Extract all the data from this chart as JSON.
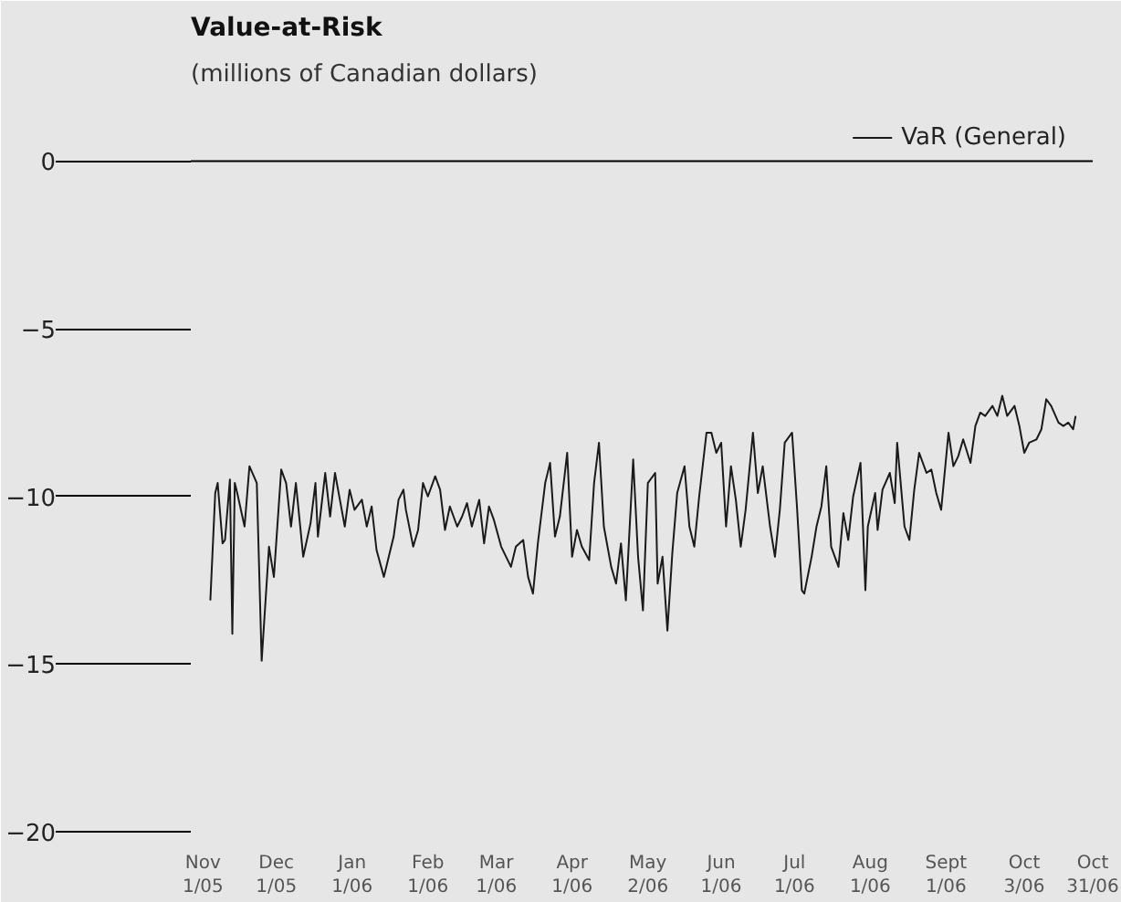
{
  "chart_data": {
    "type": "line",
    "title": "Value-at-Risk",
    "subtitle": "(millions of Canadian dollars)",
    "xlim": [
      "2005-10-27",
      "2006-10-31"
    ],
    "xticks": [
      {
        "value": "2005-11-01",
        "label": "Nov\n1/05"
      },
      {
        "value": "2005-12-01",
        "label": "Dec\n1/05"
      },
      {
        "value": "2006-01-01",
        "label": "Jan\n1/06"
      },
      {
        "value": "2006-02-01",
        "label": "Feb\n1/06"
      },
      {
        "value": "2006-03-01",
        "label": "Mar\n1/06"
      },
      {
        "value": "2006-04-01",
        "label": "Apr\n1/06"
      },
      {
        "value": "2006-05-02",
        "label": "May\n2/06"
      },
      {
        "value": "2006-06-01",
        "label": "Jun\n1/06"
      },
      {
        "value": "2006-07-01",
        "label": "Jul\n1/06"
      },
      {
        "value": "2006-08-01",
        "label": "Aug\n1/06"
      },
      {
        "value": "2006-09-01",
        "label": "Sept\n1/06"
      },
      {
        "value": "2006-10-03",
        "label": "Oct\n3/06"
      },
      {
        "value": "2006-10-31",
        "label": "Oct\n31/06"
      }
    ],
    "ylim": [
      -20,
      2
    ],
    "yticks": [
      0,
      -5,
      -10,
      -15,
      -20
    ],
    "ref_lines": [
      {
        "axis": "y",
        "value": 0,
        "color": "#000000"
      }
    ],
    "legend": "top right",
    "marker": "none",
    "line_style": "solid",
    "x": [
      "2005-11-04",
      "2005-11-06",
      "2005-11-07",
      "2005-11-09",
      "2005-11-10",
      "2005-11-12",
      "2005-11-13",
      "2005-11-14",
      "2005-11-15",
      "2005-11-18",
      "2005-11-20",
      "2005-11-23",
      "2005-11-25",
      "2005-11-28",
      "2005-11-30",
      "2005-12-03",
      "2005-12-05",
      "2005-12-07",
      "2005-12-09",
      "2005-12-12",
      "2005-12-15",
      "2005-12-17",
      "2005-12-18",
      "2005-12-21",
      "2005-12-23",
      "2005-12-25",
      "2005-12-27",
      "2005-12-29",
      "2005-12-31",
      "2006-01-02",
      "2006-01-05",
      "2006-01-07",
      "2006-01-09",
      "2006-01-11",
      "2006-01-14",
      "2006-01-16",
      "2006-01-18",
      "2006-01-20",
      "2006-01-22",
      "2006-01-23",
      "2006-01-26",
      "2006-01-28",
      "2006-01-30",
      "2006-02-01",
      "2006-02-04",
      "2006-02-06",
      "2006-02-08",
      "2006-02-10",
      "2006-02-13",
      "2006-02-15",
      "2006-02-17",
      "2006-02-19",
      "2006-02-22",
      "2006-02-24",
      "2006-02-26",
      "2006-02-28",
      "2006-03-03",
      "2006-03-05",
      "2006-03-07",
      "2006-03-09",
      "2006-03-12",
      "2006-03-14",
      "2006-03-16",
      "2006-03-18",
      "2006-03-21",
      "2006-03-23",
      "2006-03-25",
      "2006-03-27",
      "2006-03-30",
      "2006-04-01",
      "2006-04-03",
      "2006-04-05",
      "2006-04-08",
      "2006-04-10",
      "2006-04-12",
      "2006-04-14",
      "2006-04-17",
      "2006-04-19",
      "2006-04-21",
      "2006-04-23",
      "2006-04-26",
      "2006-04-28",
      "2006-04-30",
      "2006-05-02",
      "2006-05-05",
      "2006-05-06",
      "2006-05-08",
      "2006-05-10",
      "2006-05-12",
      "2006-05-14",
      "2006-05-17",
      "2006-05-19",
      "2006-05-21",
      "2006-05-23",
      "2006-05-26",
      "2006-05-28",
      "2006-05-30",
      "2006-06-01",
      "2006-06-03",
      "2006-06-05",
      "2006-06-07",
      "2006-06-09",
      "2006-06-11",
      "2006-06-14",
      "2006-06-16",
      "2006-06-18",
      "2006-06-21",
      "2006-06-23",
      "2006-06-25",
      "2006-06-27",
      "2006-06-30",
      "2006-07-02",
      "2006-07-04",
      "2006-07-05",
      "2006-07-08",
      "2006-07-10",
      "2006-07-12",
      "2006-07-14",
      "2006-07-16",
      "2006-07-19",
      "2006-07-21",
      "2006-07-23",
      "2006-07-25",
      "2006-07-28",
      "2006-07-30",
      "2006-07-31",
      "2006-08-03",
      "2006-08-04",
      "2006-08-06",
      "2006-08-09",
      "2006-08-11",
      "2006-08-12",
      "2006-08-15",
      "2006-08-17",
      "2006-08-19",
      "2006-08-21",
      "2006-08-24",
      "2006-08-26",
      "2006-08-28",
      "2006-08-30",
      "2006-09-02",
      "2006-09-04",
      "2006-09-06",
      "2006-09-08",
      "2006-09-11",
      "2006-09-13",
      "2006-09-15",
      "2006-09-17",
      "2006-09-20",
      "2006-09-22",
      "2006-09-24",
      "2006-09-26",
      "2006-09-29",
      "2006-10-01",
      "2006-10-03",
      "2006-10-05",
      "2006-10-08",
      "2006-10-10",
      "2006-10-12",
      "2006-10-14",
      "2006-10-17",
      "2006-10-19",
      "2006-10-21",
      "2006-10-23",
      "2006-10-24"
    ],
    "series": [
      {
        "name": "VaR (General)",
        "color": "#1a1a1a",
        "values": [
          -13.1,
          -9.9,
          -9.6,
          -11.4,
          -11.3,
          -9.5,
          -14.1,
          -9.6,
          -9.9,
          -10.9,
          -9.1,
          -9.6,
          -14.9,
          -11.5,
          -12.4,
          -9.2,
          -9.6,
          -10.9,
          -9.6,
          -11.8,
          -10.8,
          -9.6,
          -11.2,
          -9.3,
          -10.6,
          -9.3,
          -10.1,
          -10.9,
          -9.8,
          -10.4,
          -10.1,
          -10.9,
          -10.3,
          -11.6,
          -12.4,
          -11.8,
          -11.2,
          -10.1,
          -9.8,
          -10.4,
          -11.5,
          -11.0,
          -9.6,
          -10.0,
          -9.4,
          -9.8,
          -11.0,
          -10.3,
          -10.9,
          -10.6,
          -10.2,
          -10.9,
          -10.1,
          -11.4,
          -10.3,
          -10.7,
          -11.5,
          -11.8,
          -12.1,
          -11.5,
          -11.3,
          -12.4,
          -12.9,
          -11.4,
          -9.6,
          -9.0,
          -11.2,
          -10.6,
          -8.7,
          -11.8,
          -11.0,
          -11.5,
          -11.9,
          -9.6,
          -8.4,
          -10.9,
          -12.1,
          -12.6,
          -11.4,
          -13.1,
          -8.9,
          -11.8,
          -13.4,
          -9.6,
          -9.3,
          -12.6,
          -11.8,
          -14.0,
          -11.7,
          -9.9,
          -9.1,
          -10.9,
          -11.5,
          -10.0,
          -8.1,
          -8.1,
          -8.7,
          -8.4,
          -10.9,
          -9.1,
          -10.1,
          -11.5,
          -10.4,
          -8.1,
          -9.9,
          -9.1,
          -10.9,
          -11.8,
          -10.4,
          -8.4,
          -8.1,
          -10.3,
          -12.8,
          -12.9,
          -11.8,
          -10.9,
          -10.3,
          -9.1,
          -11.5,
          -12.1,
          -10.5,
          -11.3,
          -10.0,
          -9.0,
          -12.8,
          -10.9,
          -9.9,
          -11.0,
          -9.8,
          -9.3,
          -10.2,
          -8.4,
          -10.9,
          -11.3,
          -9.8,
          -8.7,
          -9.3,
          -9.2,
          -9.9,
          -10.4,
          -8.1,
          -9.1,
          -8.8,
          -8.3,
          -9.0,
          -7.9,
          -7.5,
          -7.6,
          -7.3,
          -7.6,
          -7.0,
          -7.6,
          -7.3,
          -7.9,
          -8.7,
          -8.4,
          -8.3,
          -8.0,
          -7.1,
          -7.3,
          -7.8,
          -7.9,
          -7.8,
          -8.0,
          -7.6
        ]
      }
    ]
  }
}
